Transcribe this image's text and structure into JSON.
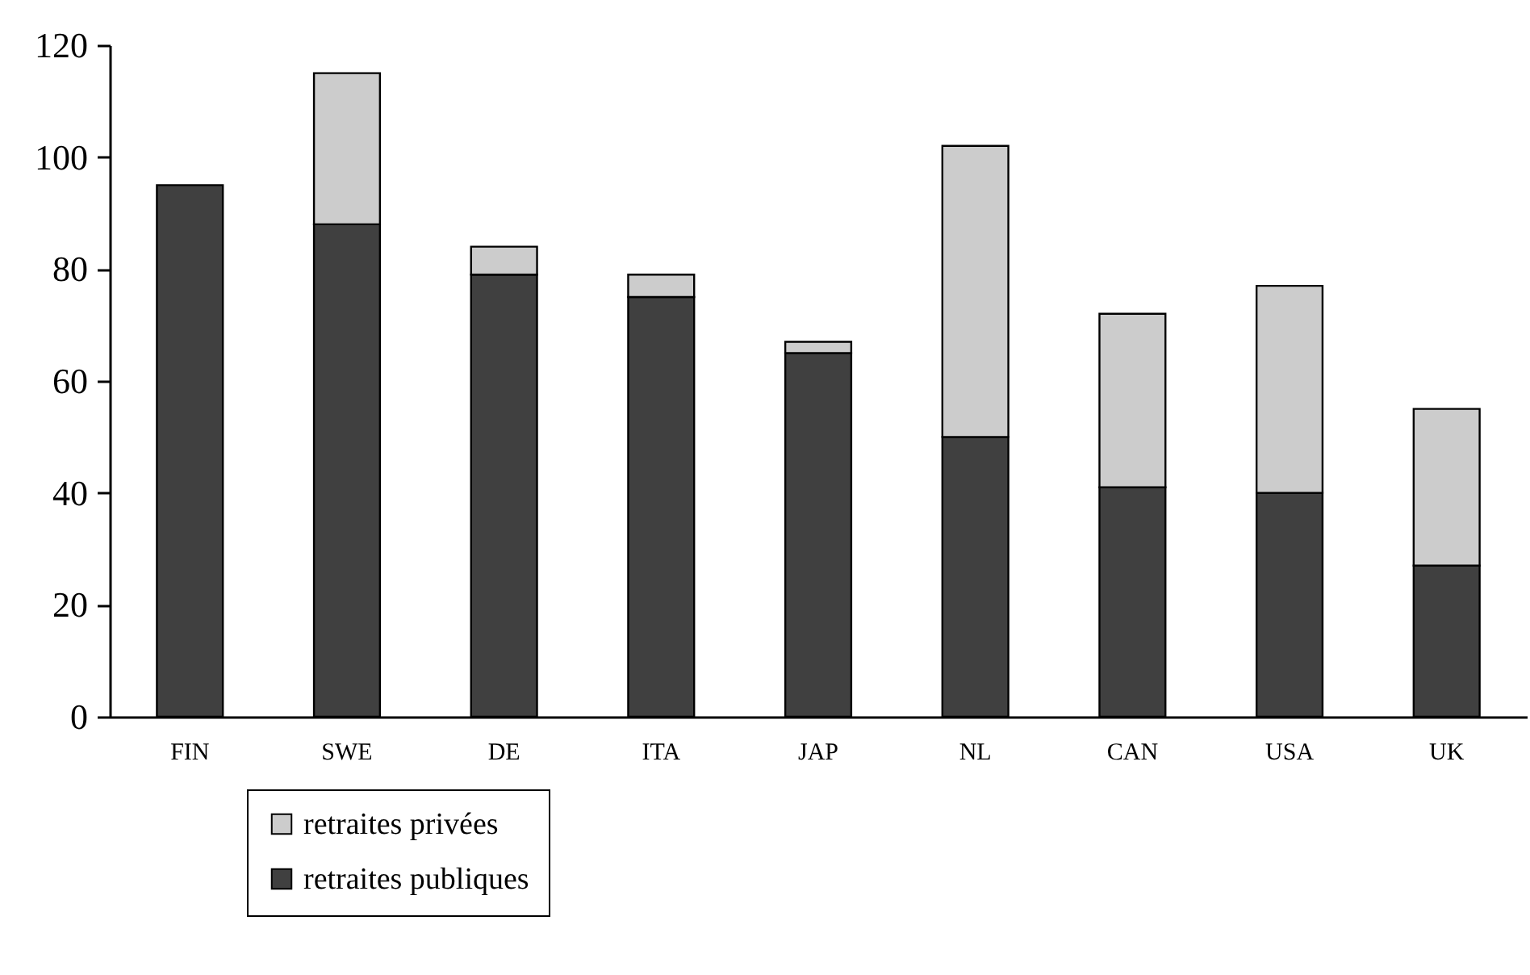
{
  "chart_data": {
    "type": "bar",
    "stacked": true,
    "categories": [
      "FIN",
      "SWE",
      "DE",
      "ITA",
      "JAP",
      "NL",
      "CAN",
      "USA",
      "UK"
    ],
    "series": [
      {
        "name": "retraites publiques",
        "color": "#404040",
        "values": [
          95,
          88,
          79,
          75,
          65,
          50,
          41,
          40,
          27
        ]
      },
      {
        "name": "retraites privées",
        "color": "#cccccc",
        "values": [
          null,
          27,
          5,
          4,
          2,
          52,
          31,
          37,
          28
        ]
      }
    ],
    "ylim": [
      0,
      120
    ],
    "yticks": [
      0,
      20,
      40,
      60,
      80,
      100,
      120
    ],
    "grid": false,
    "legend": "bottom left"
  }
}
